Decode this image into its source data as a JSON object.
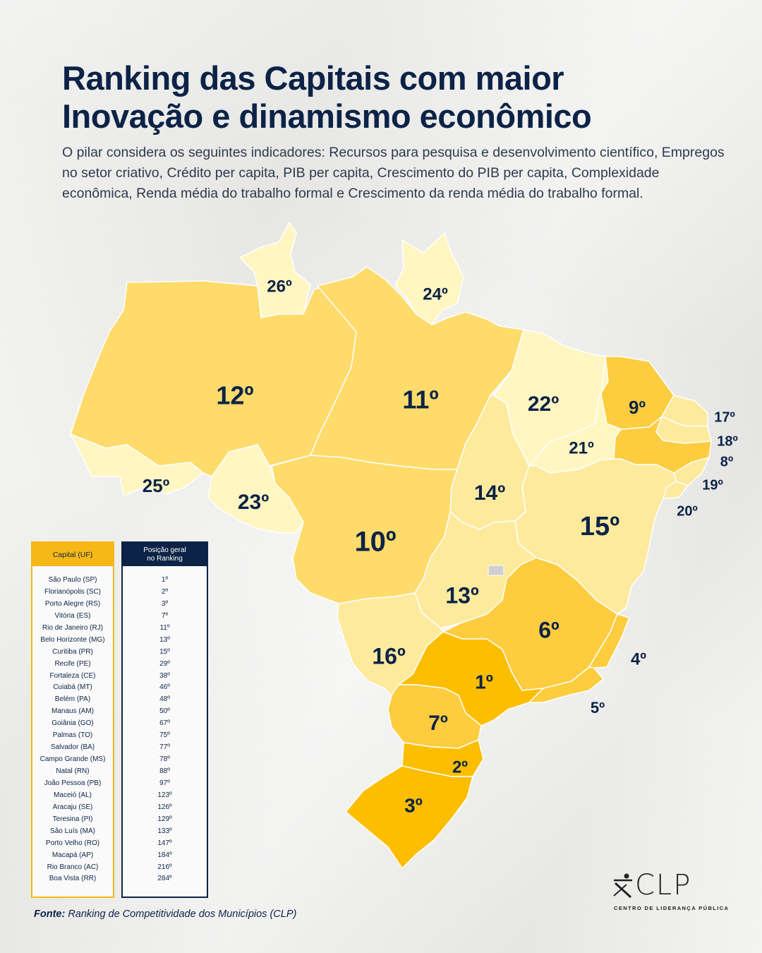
{
  "title": {
    "line1": "Ranking das Capitais com maior",
    "line2": "Inovação e dinamismo econômico"
  },
  "description": "O pilar considera os seguintes indicadores: Recursos para pesquisa e desenvolvimento científico, Empregos no setor criativo, Crédito per capita, PIB per capita, Crescimento do PIB per capita, Complexidade econômica, Renda média do trabalho formal e Crescimento da renda média do trabalho formal.",
  "map": {
    "colors": {
      "darkest": "#fdbe00",
      "dark": "#fdcd3f",
      "medium": "#fedb6b",
      "light": "#feea9d",
      "lightest": "#fff6c2",
      "border": "#ffffff",
      "df": "#d0d0d0"
    },
    "states": [
      {
        "uf": "RR",
        "rank": "26º",
        "shade": "lightest"
      },
      {
        "uf": "AP",
        "rank": "24º",
        "shade": "lightest"
      },
      {
        "uf": "AM",
        "rank": "12º",
        "shade": "medium"
      },
      {
        "uf": "PA",
        "rank": "11º",
        "shade": "medium"
      },
      {
        "uf": "MA",
        "rank": "22º",
        "shade": "lightest"
      },
      {
        "uf": "CE",
        "rank": "9º",
        "shade": "dark"
      },
      {
        "uf": "PI",
        "rank": "21º",
        "shade": "lightest"
      },
      {
        "uf": "RN",
        "rank": "17º",
        "shade": "light"
      },
      {
        "uf": "PB",
        "rank": "18º",
        "shade": "light"
      },
      {
        "uf": "PE",
        "rank": "8º",
        "shade": "dark"
      },
      {
        "uf": "AL",
        "rank": "19º",
        "shade": "light"
      },
      {
        "uf": "SE",
        "rank": "20º",
        "shade": "light"
      },
      {
        "uf": "AC",
        "rank": "25º",
        "shade": "lightest"
      },
      {
        "uf": "RO",
        "rank": "23º",
        "shade": "lightest"
      },
      {
        "uf": "TO",
        "rank": "14º",
        "shade": "light"
      },
      {
        "uf": "BA",
        "rank": "15º",
        "shade": "light"
      },
      {
        "uf": "MT",
        "rank": "10º",
        "shade": "medium"
      },
      {
        "uf": "GO",
        "rank": "13º",
        "shade": "light"
      },
      {
        "uf": "MG",
        "rank": "6º",
        "shade": "dark"
      },
      {
        "uf": "ES",
        "rank": "4º",
        "shade": "dark"
      },
      {
        "uf": "MS",
        "rank": "16º",
        "shade": "light"
      },
      {
        "uf": "SP",
        "rank": "1º",
        "shade": "darkest"
      },
      {
        "uf": "RJ",
        "rank": "5º",
        "shade": "dark"
      },
      {
        "uf": "PR",
        "rank": "7º",
        "shade": "dark"
      },
      {
        "uf": "SC",
        "rank": "2º",
        "shade": "darkest"
      },
      {
        "uf": "RS",
        "rank": "3º",
        "shade": "darkest"
      }
    ]
  },
  "legend": {
    "capital_header": "Capital (UF)",
    "position_header_line1": "Posição geral",
    "position_header_line2": "no Ranking",
    "rows": [
      {
        "capital": "São Paulo (SP)",
        "position": "1º"
      },
      {
        "capital": "Florianópolis (SC)",
        "position": "2º"
      },
      {
        "capital": "Porto Alegre (RS)",
        "position": "3º"
      },
      {
        "capital": "Vitória (ES)",
        "position": "7º"
      },
      {
        "capital": "Rio de Janeiro (RJ)",
        "position": "11º"
      },
      {
        "capital": "Belo Horizonte (MG)",
        "position": "13º"
      },
      {
        "capital": "Curitiba (PR)",
        "position": "15º"
      },
      {
        "capital": "Recife (PE)",
        "position": "29º"
      },
      {
        "capital": "Fortaleza (CE)",
        "position": "38º"
      },
      {
        "capital": "Cuiabá (MT)",
        "position": "46º"
      },
      {
        "capital": "Belém (PA)",
        "position": "48º"
      },
      {
        "capital": "Manaus (AM)",
        "position": "50º"
      },
      {
        "capital": "Goiânia (GO)",
        "position": "67º"
      },
      {
        "capital": "Palmas (TO)",
        "position": "75º"
      },
      {
        "capital": "Salvador (BA)",
        "position": "77º"
      },
      {
        "capital": "Campo Grande (MS)",
        "position": "78º"
      },
      {
        "capital": "Natal (RN)",
        "position": "88º"
      },
      {
        "capital": "João Pessoa (PB)",
        "position": "97º"
      },
      {
        "capital": "Maceió (AL)",
        "position": "123º"
      },
      {
        "capital": "Aracaju (SE)",
        "position": "126º"
      },
      {
        "capital": "Teresina (PI)",
        "position": "129º"
      },
      {
        "capital": "São Luís (MA)",
        "position": "133º"
      },
      {
        "capital": "Porto Velho (RO)",
        "position": "147º"
      },
      {
        "capital": "Macapá (AP)",
        "position": "184º"
      },
      {
        "capital": "Rio Branco (AC)",
        "position": "216º"
      },
      {
        "capital": "Boa Vista (RR)",
        "position": "284º"
      }
    ]
  },
  "source": {
    "label": "Fonte:",
    "text": " Ranking de Competitividade dos  Municípios (CLP)"
  },
  "logo": {
    "name": "CLP",
    "subtitle": "CENTRO DE LIDERANÇA PÚBLICA"
  }
}
